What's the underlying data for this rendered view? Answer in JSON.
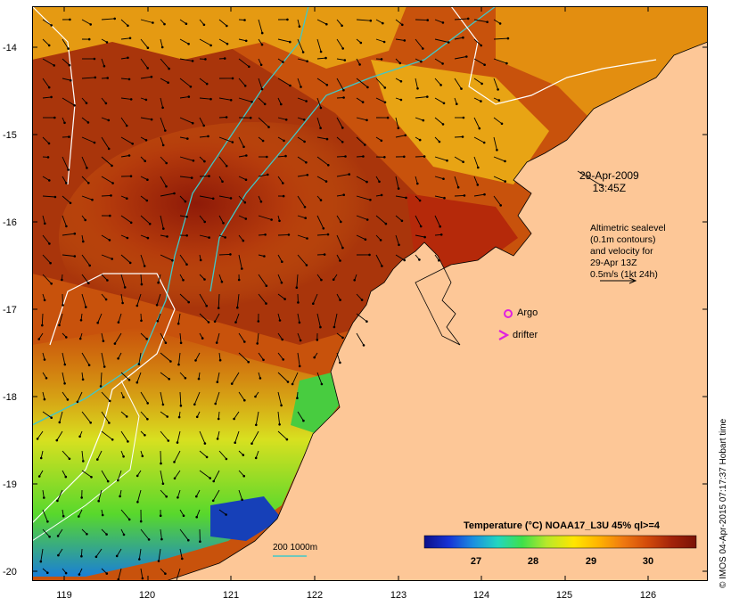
{
  "timestamp": {
    "date": "29-Apr-2009",
    "time": "13:45Z"
  },
  "altimetry_note": [
    "Altimetric sealevel",
    "(0.1m contours)",
    "and velocity for",
    "29-Apr 13Z",
    "0.5m/s (1kt 24h)"
  ],
  "markers": {
    "argo_label": "Argo",
    "drifter_label": "drifter"
  },
  "depth_contour_label": "200  1000m",
  "legend": {
    "title": "Temperature (°C) NOAA17_L3U 45% ql>=4",
    "ticks": [
      "27",
      "28",
      "29",
      "30"
    ],
    "colormap": [
      "#0b0f8a",
      "#1633d6",
      "#1a8fe0",
      "#22d6c0",
      "#3fe04a",
      "#b8e82a",
      "#ffe600",
      "#ffb400",
      "#f07a10",
      "#d24a0a",
      "#a3230a",
      "#7a1206"
    ]
  },
  "axes": {
    "x_ticks": [
      "119",
      "120",
      "121",
      "122",
      "123",
      "124",
      "125",
      "126"
    ],
    "y_ticks": [
      "-14",
      "-15",
      "-16",
      "-17",
      "-18",
      "-19",
      "-20"
    ]
  },
  "credit": "© IMOS 04-Apr-2015 07:17:37 Hobart time",
  "colors": {
    "land": "#fdc797",
    "contour": "#40c8c8",
    "argo": "#e020e0"
  }
}
